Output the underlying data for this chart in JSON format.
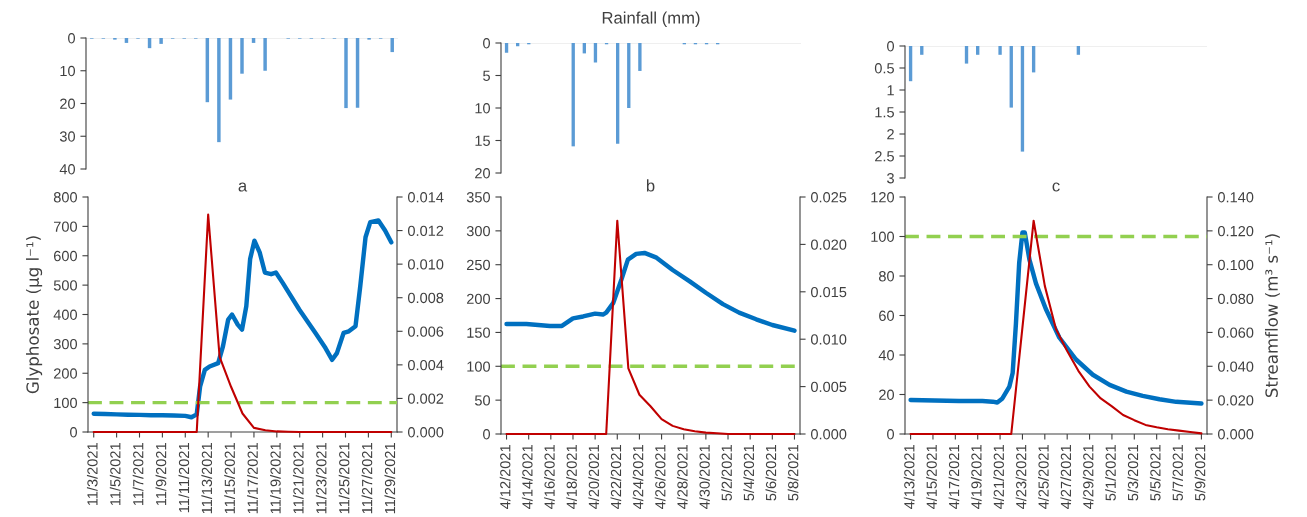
{
  "chart_data": [
    {
      "type": "bar",
      "x": [
        "2021-11-03",
        "2021-11-04",
        "2021-11-05",
        "2021-11-06",
        "2021-11-07",
        "2021-11-08",
        "2021-11-09",
        "2021-11-10",
        "2021-11-11",
        "2021-11-12",
        "2021-11-13",
        "2021-11-14",
        "2021-11-15",
        "2021-11-16",
        "2021-11-17",
        "2021-11-18",
        "2021-11-19",
        "2021-11-20",
        "2021-11-21",
        "2021-11-22",
        "2021-11-23",
        "2021-11-24",
        "2021-11-25",
        "2021-11-26",
        "2021-11-27",
        "2021-11-28",
        "2021-11-29"
      ],
      "values": [
        0.2,
        0.2,
        0.5,
        1.5,
        0.2,
        3.1,
        1.8,
        0.2,
        0.2,
        0.2,
        19.6,
        31.8,
        18.8,
        10.9,
        1.5,
        10,
        0,
        0.2,
        0.2,
        0.2,
        0.2,
        0.2,
        21.4,
        21.3,
        0.5,
        0.2,
        4.3
      ],
      "color": "#5b9bd5",
      "xlim": [
        "2021-11-02T12:00",
        "2021-11-29T12:00"
      ],
      "ylim": [
        40,
        0
      ],
      "yticks": [
        0,
        10,
        20,
        30,
        40
      ],
      "tick_labels": "y"
    },
    {
      "type": "bar",
      "title": "Rainfall (mm)",
      "x": [
        "2021-04-12",
        "2021-04-13",
        "2021-04-14",
        "2021-04-15",
        "2021-04-16",
        "2021-04-17",
        "2021-04-18",
        "2021-04-19",
        "2021-04-20",
        "2021-04-21",
        "2021-04-22",
        "2021-04-23",
        "2021-04-24",
        "2021-04-25",
        "2021-04-26",
        "2021-04-27",
        "2021-04-28",
        "2021-04-29",
        "2021-04-30",
        "2021-05-01",
        "2021-05-02",
        "2021-05-03",
        "2021-05-04",
        "2021-05-05",
        "2021-05-06",
        "2021-05-07",
        "2021-05-08"
      ],
      "values": [
        1.5,
        0.5,
        0.2,
        0,
        0,
        0,
        15.9,
        1.6,
        3.0,
        0.2,
        15.5,
        10,
        4.3,
        0,
        0,
        0,
        0.2,
        0.2,
        0.2,
        0.2,
        0,
        0,
        0,
        0,
        0,
        0,
        0
      ],
      "color": "#5b9bd5",
      "xlim": [
        "2021-04-11T12:00",
        "2021-05-08T12:00"
      ],
      "ylim": [
        20,
        0
      ],
      "yticks": [
        0,
        5,
        10,
        15,
        20
      ],
      "tick_labels": "y"
    },
    {
      "type": "bar",
      "x": [
        "2021-04-13",
        "2021-04-14",
        "2021-04-15",
        "2021-04-16",
        "2021-04-17",
        "2021-04-18",
        "2021-04-19",
        "2021-04-20",
        "2021-04-21",
        "2021-04-22",
        "2021-04-23",
        "2021-04-24",
        "2021-04-25",
        "2021-04-26",
        "2021-04-27",
        "2021-04-28",
        "2021-04-29",
        "2021-04-30",
        "2021-05-01",
        "2021-05-02",
        "2021-05-03",
        "2021-05-04",
        "2021-05-05",
        "2021-05-06",
        "2021-05-07",
        "2021-05-08",
        "2021-05-09"
      ],
      "values": [
        0.8,
        0.2,
        0,
        0,
        0,
        0.4,
        0.2,
        0,
        0.2,
        1.4,
        2.4,
        0.6,
        0,
        0,
        0,
        0.2,
        0,
        0,
        0,
        0,
        0,
        0,
        0,
        0,
        0,
        0,
        0
      ],
      "color": "#5b9bd5",
      "xlim": [
        "2021-04-12T12:00",
        "2021-05-09T12:00"
      ],
      "ylim": [
        3,
        0
      ],
      "yticks": [
        0,
        0.5,
        1,
        1.5,
        2,
        2.5,
        3
      ],
      "tick_labels": "y"
    },
    {
      "type": "line",
      "title": "a",
      "ylabel": "Glyphosate (µg l⁻¹)",
      "series": [
        {
          "color": "#c00000",
          "x": [
            "2021-11-03",
            "2021-11-04",
            "2021-11-05",
            "2021-11-06",
            "2021-11-07",
            "2021-11-08",
            "2021-11-09",
            "2021-11-10",
            "2021-11-11",
            "2021-11-12",
            "2021-11-13",
            "2021-11-14",
            "2021-11-15",
            "2021-11-16",
            "2021-11-17",
            "2021-11-18",
            "2021-11-19",
            "2021-11-20",
            "2021-11-21",
            "2021-11-22",
            "2021-11-23",
            "2021-11-24",
            "2021-11-25",
            "2021-11-26",
            "2021-11-27",
            "2021-11-28",
            "2021-11-29"
          ],
          "values": [
            0,
            0,
            0,
            0,
            0,
            0,
            0,
            0,
            0,
            0,
            740,
            256,
            154,
            63,
            14,
            6,
            2,
            1,
            0,
            0,
            0,
            0,
            0,
            0,
            0,
            0,
            0
          ]
        },
        {
          "color": "#0070c0",
          "axis": "y2",
          "x": [
            "2021-11-03",
            "2021-11-04",
            "2021-11-05",
            "2021-11-06",
            "2021-11-07",
            "2021-11-08",
            "2021-11-09",
            "2021-11-10",
            "2021-11-11",
            "2021-11-11T13:00",
            "2021-11-12",
            "2021-11-12T07:00",
            "2021-11-12T17:00",
            "2021-11-13T03:00",
            "2021-11-13T21:00",
            "2021-11-14T07:00",
            "2021-11-14T18:00",
            "2021-11-15T02:00",
            "2021-11-15T14:00",
            "2021-11-15T23:00",
            "2021-11-16T08:00",
            "2021-11-16T16:00",
            "2021-11-17T01:00",
            "2021-11-17T12:00",
            "2021-11-17T23:00",
            "2021-11-18T12:00",
            "2021-11-18T22:00",
            "2021-11-19T12:00",
            "2021-11-20T23:00",
            "2021-11-22T09:00",
            "2021-11-23T06:00",
            "2021-11-23T20:00",
            "2021-11-24T06:00",
            "2021-11-24T20:00",
            "2021-11-25T07:00",
            "2021-11-25T21:00",
            "2021-11-26T07:00",
            "2021-11-26T18:00",
            "2021-11-27T04:00",
            "2021-11-27T21:00",
            "2021-11-28T11:00",
            "2021-11-29"
          ],
          "values": [
            0.00109,
            0.00107,
            0.00105,
            0.00103,
            0.00102,
            0.001,
            0.001,
            0.00098,
            0.00096,
            0.00088,
            0.00105,
            0.0027,
            0.0037,
            0.0039,
            0.0041,
            0.0051,
            0.0067,
            0.007,
            0.0064,
            0.0061,
            0.0075,
            0.0103,
            0.0114,
            0.0107,
            0.0095,
            0.0094,
            0.0095,
            0.0089,
            0.0073,
            0.0059,
            0.005,
            0.0043,
            0.0047,
            0.0059,
            0.006,
            0.0063,
            0.0087,
            0.0116,
            0.0125,
            0.0126,
            0.012,
            0.0113
          ]
        }
      ],
      "xlim": [
        "2021-11-02T12:00",
        "2021-11-29T12:00"
      ],
      "xticks": [
        {
          "value": "2021-11-03",
          "label": "11/3/2021"
        },
        {
          "value": "2021-11-05",
          "label": "11/5/2021"
        },
        {
          "value": "2021-11-07",
          "label": "11/7/2021"
        },
        {
          "value": "2021-11-09",
          "label": "11/9/2021"
        },
        {
          "value": "2021-11-11",
          "label": "11/11/2021"
        },
        {
          "value": "2021-11-13",
          "label": "11/13/2021"
        },
        {
          "value": "2021-11-15",
          "label": "11/15/2021"
        },
        {
          "value": "2021-11-17",
          "label": "11/17/2021"
        },
        {
          "value": "2021-11-19",
          "label": "11/19/2021"
        },
        {
          "value": "2021-11-21",
          "label": "11/21/2021"
        },
        {
          "value": "2021-11-23",
          "label": "11/23/2021"
        },
        {
          "value": "2021-11-25",
          "label": "11/25/2021"
        },
        {
          "value": "2021-11-27",
          "label": "11/27/2021"
        },
        {
          "value": "2021-11-29",
          "label": "11/29/2021"
        }
      ],
      "ylim": [
        0,
        800
      ],
      "yticks": [
        0,
        100,
        200,
        300,
        400,
        500,
        600,
        700,
        800
      ],
      "y2lim": [
        0,
        0.014
      ],
      "y2ticks": [
        {
          "value": 0,
          "label": "0.000"
        },
        {
          "value": 0.002,
          "label": "0.002"
        },
        {
          "value": 0.004,
          "label": "0.004"
        },
        {
          "value": 0.006,
          "label": "0.006"
        },
        {
          "value": 0.008,
          "label": "0.008"
        },
        {
          "value": 0.01,
          "label": "0.010"
        },
        {
          "value": 0.012,
          "label": "0.012"
        },
        {
          "value": 0.014,
          "label": "0.014"
        }
      ],
      "ref_lines": [
        {
          "axis": "y",
          "value": 100,
          "color": "#92d050",
          "line_style": "dashed"
        }
      ]
    },
    {
      "type": "line",
      "title": "b",
      "series": [
        {
          "color": "#c00000",
          "x": [
            "2021-04-12",
            "2021-04-13",
            "2021-04-14",
            "2021-04-15",
            "2021-04-16",
            "2021-04-17",
            "2021-04-18",
            "2021-04-19",
            "2021-04-20",
            "2021-04-21",
            "2021-04-22",
            "2021-04-23",
            "2021-04-24",
            "2021-04-25",
            "2021-04-26",
            "2021-04-27",
            "2021-04-28",
            "2021-04-29",
            "2021-04-30",
            "2021-05-01",
            "2021-05-02",
            "2021-05-03",
            "2021-05-04",
            "2021-05-05",
            "2021-05-06",
            "2021-05-07",
            "2021-05-08"
          ],
          "values": [
            0,
            0,
            0,
            0,
            0,
            0,
            0,
            0,
            0,
            0,
            315,
            97,
            58,
            41,
            22,
            12,
            7,
            4,
            2,
            1,
            0,
            0,
            0,
            0,
            0,
            0,
            0
          ]
        },
        {
          "color": "#0070c0",
          "axis": "y2",
          "x": [
            "2021-04-12",
            "2021-04-13T19:00",
            "2021-04-15T22:00",
            "2021-04-17",
            "2021-04-18",
            "2021-04-18T22:00",
            "2021-04-20",
            "2021-04-20T17:00",
            "2021-04-21",
            "2021-04-21T15:00",
            "2021-04-22T09:00",
            "2021-04-22T23:00",
            "2021-04-23T17:00",
            "2021-04-24T11:00",
            "2021-04-25T13:00",
            "2021-04-27",
            "2021-04-28T13:00",
            "2021-04-30",
            "2021-05-01T13:00",
            "2021-05-03",
            "2021-05-04T13:00",
            "2021-05-06",
            "2021-05-08"
          ],
          "values": [
            0.0116,
            0.0116,
            0.0114,
            0.0114,
            0.0122,
            0.0124,
            0.0127,
            0.0126,
            0.0128,
            0.0138,
            0.0163,
            0.0184,
            0.019,
            0.0191,
            0.0186,
            0.0173,
            0.0161,
            0.0149,
            0.0137,
            0.0128,
            0.0121,
            0.0115,
            0.0109
          ]
        }
      ],
      "xlim": [
        "2021-04-11T12:00",
        "2021-05-08T12:00"
      ],
      "xticks": [
        {
          "value": "2021-04-12",
          "label": "4/12/2021"
        },
        {
          "value": "2021-04-14",
          "label": "4/14/2021"
        },
        {
          "value": "2021-04-16",
          "label": "4/16/2021"
        },
        {
          "value": "2021-04-18",
          "label": "4/18/2021"
        },
        {
          "value": "2021-04-20",
          "label": "4/20/2021"
        },
        {
          "value": "2021-04-22",
          "label": "4/22/2021"
        },
        {
          "value": "2021-04-24",
          "label": "4/24/2021"
        },
        {
          "value": "2021-04-26",
          "label": "4/26/2021"
        },
        {
          "value": "2021-04-28",
          "label": "4/28/2021"
        },
        {
          "value": "2021-04-30",
          "label": "4/30/2021"
        },
        {
          "value": "2021-05-02",
          "label": "5/2/2021"
        },
        {
          "value": "2021-05-04",
          "label": "5/4/2021"
        },
        {
          "value": "2021-05-06",
          "label": "5/6/2021"
        },
        {
          "value": "2021-05-08",
          "label": "5/8/2021"
        }
      ],
      "ylim": [
        0,
        350
      ],
      "yticks": [
        0,
        50,
        100,
        150,
        200,
        250,
        300,
        350
      ],
      "y2lim": [
        0,
        0.025
      ],
      "y2ticks": [
        {
          "value": 0,
          "label": "0.000"
        },
        {
          "value": 0.005,
          "label": "0.005"
        },
        {
          "value": 0.01,
          "label": "0.010"
        },
        {
          "value": 0.015,
          "label": "0.015"
        },
        {
          "value": 0.02,
          "label": "0.020"
        },
        {
          "value": 0.025,
          "label": "0.025"
        }
      ],
      "ref_lines": [
        {
          "axis": "y",
          "value": 100,
          "color": "#92d050",
          "line_style": "dashed"
        }
      ]
    },
    {
      "type": "line",
      "title": "c",
      "y2label": "Streamflow (m³ s⁻¹)",
      "series": [
        {
          "color": "#c00000",
          "x": [
            "2021-04-13",
            "2021-04-14",
            "2021-04-15",
            "2021-04-16",
            "2021-04-17",
            "2021-04-18",
            "2021-04-19",
            "2021-04-20",
            "2021-04-21",
            "2021-04-22",
            "2021-04-23",
            "2021-04-24",
            "2021-04-25",
            "2021-04-26",
            "2021-04-27",
            "2021-04-28",
            "2021-04-29",
            "2021-04-30",
            "2021-05-01",
            "2021-05-02",
            "2021-05-03",
            "2021-05-04",
            "2021-05-05",
            "2021-05-06",
            "2021-05-07",
            "2021-05-08",
            "2021-05-09"
          ],
          "values": [
            0,
            0,
            0,
            0,
            0,
            0,
            0,
            0,
            0,
            0,
            54,
            108,
            75,
            53,
            42,
            32,
            24,
            18,
            14,
            9.6,
            7,
            4.6,
            3.4,
            2.4,
            1.7,
            1,
            0.3
          ]
        },
        {
          "color": "#0070c0",
          "axis": "y2",
          "x": [
            "2021-04-13",
            "2021-04-17T08:00",
            "2021-04-19T10:00",
            "2021-04-20T08:00",
            "2021-04-20T18:00",
            "2021-04-21T05:00",
            "2021-04-21T20:00",
            "2021-04-22T03:00",
            "2021-04-22T10:00",
            "2021-04-22T17:00",
            "2021-04-23",
            "2021-04-23T05:00",
            "2021-04-23T15:00",
            "2021-04-24T05:00",
            "2021-04-25T02:00",
            "2021-04-26T07:00",
            "2021-04-27T19:00",
            "2021-04-29T07:00",
            "2021-04-30T19:00",
            "2021-05-02T07:00",
            "2021-05-03T18:00",
            "2021-05-05T06:00",
            "2021-05-06T18:00",
            "2021-05-09"
          ],
          "values": [
            0.0201,
            0.0195,
            0.0195,
            0.0191,
            0.0186,
            0.021,
            0.028,
            0.036,
            0.065,
            0.101,
            0.119,
            0.119,
            0.103,
            0.089,
            0.074,
            0.057,
            0.044,
            0.035,
            0.029,
            0.025,
            0.0225,
            0.0205,
            0.019,
            0.018
          ]
        }
      ],
      "xlim": [
        "2021-04-12T12:00",
        "2021-05-09T12:00"
      ],
      "xticks": [
        {
          "value": "2021-04-13",
          "label": "4/13/2021"
        },
        {
          "value": "2021-04-15",
          "label": "4/15/2021"
        },
        {
          "value": "2021-04-17",
          "label": "4/17/2021"
        },
        {
          "value": "2021-04-19",
          "label": "4/19/2021"
        },
        {
          "value": "2021-04-21",
          "label": "4/21/2021"
        },
        {
          "value": "2021-04-23",
          "label": "4/23/2021"
        },
        {
          "value": "2021-04-25",
          "label": "4/25/2021"
        },
        {
          "value": "2021-04-27",
          "label": "4/27/2021"
        },
        {
          "value": "2021-04-29",
          "label": "4/29/2021"
        },
        {
          "value": "2021-05-01",
          "label": "5/1/2021"
        },
        {
          "value": "2021-05-03",
          "label": "5/3/2021"
        },
        {
          "value": "2021-05-05",
          "label": "5/5/2021"
        },
        {
          "value": "2021-05-07",
          "label": "5/7/2021"
        },
        {
          "value": "2021-05-09",
          "label": "5/9/2021"
        }
      ],
      "ylim": [
        0,
        120
      ],
      "yticks": [
        0,
        20,
        40,
        60,
        80,
        100,
        120
      ],
      "y2lim": [
        0,
        0.14
      ],
      "y2ticks": [
        {
          "value": 0,
          "label": "0.000"
        },
        {
          "value": 0.02,
          "label": "0.020"
        },
        {
          "value": 0.04,
          "label": "0.040"
        },
        {
          "value": 0.06,
          "label": "0.060"
        },
        {
          "value": 0.08,
          "label": "0.080"
        },
        {
          "value": 0.1,
          "label": "0.100"
        },
        {
          "value": 0.12,
          "label": "0.120"
        },
        {
          "value": 0.14,
          "label": "0.140"
        }
      ],
      "ref_lines": [
        {
          "axis": "y",
          "value": 100,
          "color": "#92d050",
          "line_style": "dashed"
        }
      ]
    }
  ]
}
